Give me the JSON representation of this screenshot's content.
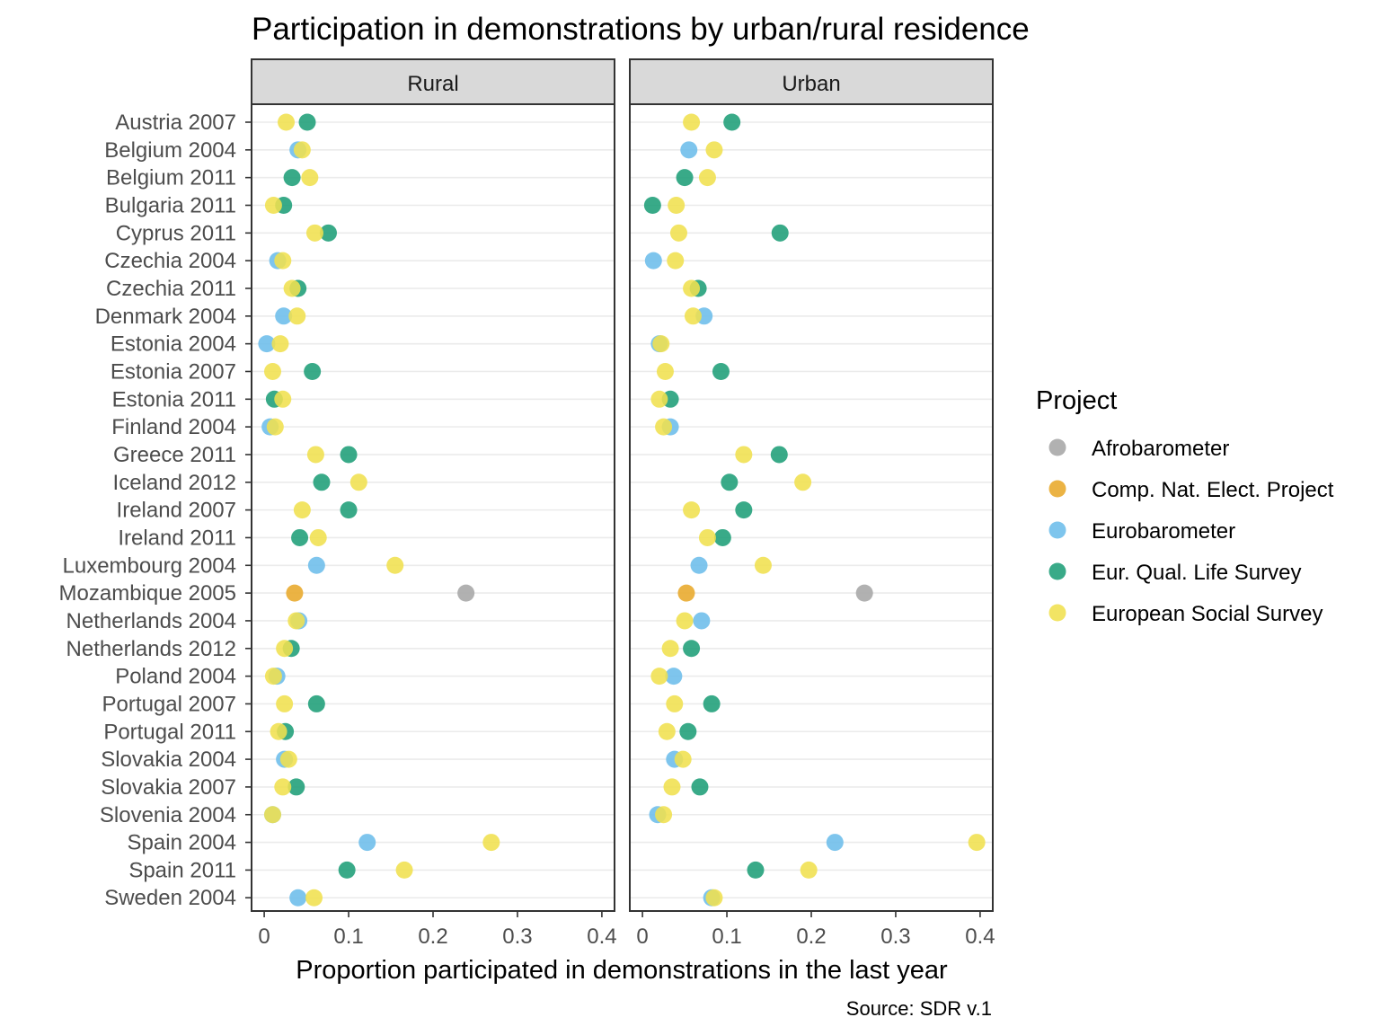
{
  "chart_data": {
    "type": "scatter",
    "title": "Participation in demonstrations by urban/rural residence",
    "xlabel": "Proportion participated in demonstrations in the last year",
    "caption": "Source: SDR v.1",
    "xlim": [
      -0.015,
      0.415
    ],
    "x_ticks": [
      "0",
      "0.1",
      "0.2",
      "0.3",
      "0.4"
    ],
    "grid": true,
    "legend": {
      "title": "Project",
      "position": "right",
      "entries": [
        {
          "name": "Afrobarometer",
          "color": "#a6a6a6"
        },
        {
          "name": "Comp. Nat. Elect. Project",
          "color": "#e8a82a"
        },
        {
          "name": "Eurobarometer",
          "color": "#6cbdea"
        },
        {
          "name": "Eur. Qual. Life Survey",
          "color": "#1e9e77"
        },
        {
          "name": "European Social Survey",
          "color": "#f0e04e"
        }
      ]
    },
    "categories": [
      "Austria 2007",
      "Belgium 2004",
      "Belgium 2011",
      "Bulgaria 2011",
      "Cyprus 2011",
      "Czechia 2004",
      "Czechia 2011",
      "Denmark 2004",
      "Estonia 2004",
      "Estonia 2007",
      "Estonia 2011",
      "Finland 2004",
      "Greece 2011",
      "Iceland 2012",
      "Ireland 2007",
      "Ireland 2011",
      "Luxembourg 2004",
      "Mozambique 2005",
      "Netherlands 2004",
      "Netherlands 2012",
      "Poland 2004",
      "Portugal 2007",
      "Portugal 2011",
      "Slovakia 2004",
      "Slovakia 2007",
      "Slovenia 2004",
      "Spain 2004",
      "Spain 2011",
      "Sweden 2004"
    ],
    "panels": [
      {
        "strip": "Rural",
        "series": [
          {
            "name": "Afrobarometer",
            "values": [
              null,
              null,
              null,
              null,
              null,
              null,
              null,
              null,
              null,
              null,
              null,
              null,
              null,
              null,
              null,
              null,
              null,
              0.239,
              null,
              null,
              null,
              null,
              null,
              null,
              null,
              null,
              null,
              null,
              null
            ]
          },
          {
            "name": "Comp. Nat. Elect. Project",
            "values": [
              null,
              null,
              null,
              null,
              null,
              null,
              null,
              null,
              null,
              null,
              null,
              null,
              null,
              null,
              null,
              null,
              null,
              0.036,
              null,
              null,
              null,
              null,
              null,
              null,
              null,
              null,
              null,
              null,
              null
            ]
          },
          {
            "name": "Eurobarometer",
            "values": [
              null,
              0.04,
              null,
              null,
              null,
              0.016,
              null,
              0.023,
              0.003,
              null,
              null,
              0.007,
              null,
              null,
              null,
              null,
              0.062,
              null,
              0.041,
              null,
              0.015,
              null,
              null,
              0.024,
              null,
              0.01,
              0.122,
              null,
              0.04
            ]
          },
          {
            "name": "Eur. Qual. Life Survey",
            "values": [
              0.051,
              null,
              0.033,
              0.023,
              0.076,
              null,
              0.04,
              null,
              null,
              0.057,
              0.012,
              null,
              0.1,
              0.068,
              0.1,
              0.042,
              null,
              null,
              null,
              0.032,
              null,
              0.062,
              0.025,
              null,
              0.038,
              null,
              null,
              0.098,
              null
            ]
          },
          {
            "name": "European Social Survey",
            "values": [
              0.026,
              0.045,
              0.054,
              0.011,
              0.06,
              0.022,
              0.033,
              0.039,
              0.019,
              0.01,
              0.022,
              0.013,
              0.061,
              0.112,
              0.045,
              0.064,
              0.155,
              null,
              0.038,
              0.024,
              0.011,
              0.024,
              0.017,
              0.029,
              0.022,
              0.01,
              0.269,
              0.166,
              0.059
            ]
          }
        ]
      },
      {
        "strip": "Urban",
        "series": [
          {
            "name": "Afrobarometer",
            "values": [
              null,
              null,
              null,
              null,
              null,
              null,
              null,
              null,
              null,
              null,
              null,
              null,
              null,
              null,
              null,
              null,
              null,
              0.263,
              null,
              null,
              null,
              null,
              null,
              null,
              null,
              null,
              null,
              null,
              null
            ]
          },
          {
            "name": "Comp. Nat. Elect. Project",
            "values": [
              null,
              null,
              null,
              null,
              null,
              null,
              null,
              null,
              null,
              null,
              null,
              null,
              null,
              null,
              null,
              null,
              null,
              0.052,
              null,
              null,
              null,
              null,
              null,
              null,
              null,
              null,
              null,
              null,
              null
            ]
          },
          {
            "name": "Eurobarometer",
            "values": [
              null,
              0.055,
              null,
              null,
              null,
              0.013,
              null,
              0.073,
              0.02,
              null,
              null,
              0.033,
              null,
              null,
              null,
              null,
              0.067,
              null,
              0.07,
              null,
              0.037,
              null,
              null,
              0.038,
              null,
              0.018,
              0.228,
              null,
              0.082
            ]
          },
          {
            "name": "Eur. Qual. Life Survey",
            "values": [
              0.106,
              null,
              0.05,
              0.012,
              0.163,
              null,
              0.066,
              null,
              null,
              0.093,
              0.033,
              null,
              0.162,
              0.103,
              0.12,
              0.095,
              null,
              null,
              null,
              0.058,
              null,
              0.082,
              0.054,
              null,
              0.068,
              null,
              null,
              0.134,
              null
            ]
          },
          {
            "name": "European Social Survey",
            "values": [
              0.058,
              0.085,
              0.077,
              0.04,
              0.043,
              0.039,
              0.058,
              0.06,
              0.022,
              0.027,
              0.02,
              0.025,
              0.12,
              0.19,
              0.058,
              0.077,
              0.143,
              null,
              0.05,
              0.033,
              0.02,
              0.038,
              0.029,
              0.048,
              0.035,
              0.025,
              0.396,
              0.197,
              0.085
            ]
          }
        ]
      }
    ]
  }
}
